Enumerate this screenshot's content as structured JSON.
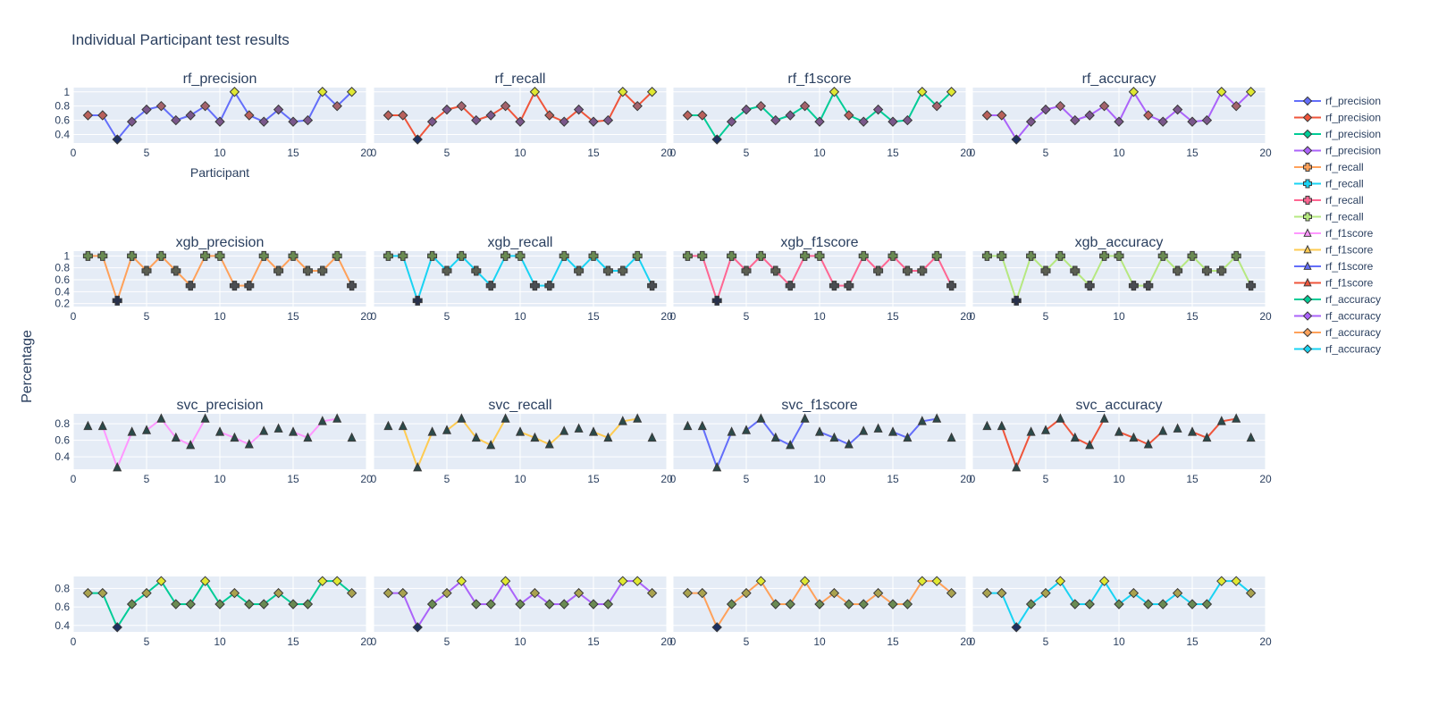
{
  "title": "Individual Participant test results",
  "ylabel": "Percentage",
  "xlabel": "Participant",
  "colors": {
    "blue": "#636efa",
    "red": "#ef553b",
    "green": "#00cc96",
    "purple": "#ab63fa",
    "orange": "#ffa15a",
    "cyan": "#19d3f3",
    "pink": "#ff6692",
    "lime": "#b6e880",
    "magenta": "#ff97ff",
    "yellow": "#fecb52",
    "plot_bg": "#e5ecf6",
    "grid": "#ffffff",
    "marker_edge": "#3a3a3a"
  },
  "legend": [
    {
      "label": "rf_precision",
      "color": "#636efa",
      "symbol": "diamond"
    },
    {
      "label": "rf_precision",
      "color": "#ef553b",
      "symbol": "diamond"
    },
    {
      "label": "rf_precision",
      "color": "#00cc96",
      "symbol": "diamond"
    },
    {
      "label": "rf_precision",
      "color": "#ab63fa",
      "symbol": "diamond"
    },
    {
      "label": "rf_recall",
      "color": "#ffa15a",
      "symbol": "cross"
    },
    {
      "label": "rf_recall",
      "color": "#19d3f3",
      "symbol": "cross"
    },
    {
      "label": "rf_recall",
      "color": "#ff6692",
      "symbol": "cross"
    },
    {
      "label": "rf_recall",
      "color": "#b6e880",
      "symbol": "cross"
    },
    {
      "label": "rf_f1score",
      "color": "#ff97ff",
      "symbol": "triangle"
    },
    {
      "label": "rf_f1score",
      "color": "#fecb52",
      "symbol": "triangle"
    },
    {
      "label": "rf_f1score",
      "color": "#636efa",
      "symbol": "triangle"
    },
    {
      "label": "rf_f1score",
      "color": "#ef553b",
      "symbol": "triangle"
    },
    {
      "label": "rf_accuracy",
      "color": "#00cc96",
      "symbol": "diamond"
    },
    {
      "label": "rf_accuracy",
      "color": "#ab63fa",
      "symbol": "diamond"
    },
    {
      "label": "rf_accuracy",
      "color": "#ffa15a",
      "symbol": "diamond"
    },
    {
      "label": "rf_accuracy",
      "color": "#19d3f3",
      "symbol": "diamond"
    }
  ],
  "chart_data": {
    "type": "line",
    "x": [
      1,
      2,
      3,
      4,
      5,
      6,
      7,
      8,
      9,
      10,
      11,
      12,
      13,
      14,
      15,
      16,
      17,
      18,
      19
    ],
    "xlim": [
      0,
      20
    ],
    "xticks": [
      0,
      5,
      10,
      15,
      20
    ],
    "grid": true,
    "legend_position": "right",
    "rows": [
      {
        "ylim": [
          0.28,
          1.06
        ],
        "yticks": [
          0.4,
          0.6,
          0.8,
          1
        ],
        "symbol": "diamond",
        "show_xlabel": true,
        "values": [
          0.67,
          0.67,
          0.33,
          0.58,
          0.75,
          0.8,
          0.6,
          0.67,
          0.8,
          0.58,
          1,
          0.67,
          0.58,
          0.75,
          0.58,
          0.6,
          1,
          0.8,
          1
        ],
        "marker_colors": [
          "#b9605a",
          "#b9605a",
          "#1d3060",
          "#7a578a",
          "#7a578a",
          "#a4636c",
          "#7a578a",
          "#7a578a",
          "#a4636c",
          "#7a578a",
          "#e0e832",
          "#b9605a",
          "#7a578a",
          "#7a578a",
          "#7a578a",
          "#7a578a",
          "#e0e832",
          "#a4636c",
          "#e0e832"
        ],
        "panels": [
          {
            "title": "rf_precision",
            "color": "#636efa"
          },
          {
            "title": "rf_recall",
            "color": "#ef553b"
          },
          {
            "title": "rf_f1score",
            "color": "#00cc96"
          },
          {
            "title": "rf_accuracy",
            "color": "#ab63fa"
          }
        ]
      },
      {
        "ylim": [
          0.15,
          1.08
        ],
        "yticks": [
          0.2,
          0.4,
          0.6,
          0.8,
          1
        ],
        "symbol": "cross",
        "show_xlabel": false,
        "values": [
          1,
          1,
          0.25,
          1,
          0.75,
          1,
          0.75,
          0.5,
          1,
          1,
          0.5,
          0.5,
          1,
          0.75,
          1,
          0.75,
          0.75,
          1,
          0.5
        ],
        "marker_colors": [
          "#6a8a52",
          "#6a8a52",
          "#27304a",
          "#6a8a52",
          "#5b5f52",
          "#6a8a52",
          "#5b5f52",
          "#4a4d52",
          "#6a8a52",
          "#6a8a52",
          "#4a4d52",
          "#4a4d52",
          "#6a8a52",
          "#5b5f52",
          "#6a8a52",
          "#5b5f52",
          "#5b5f52",
          "#6a8a52",
          "#4a4d52"
        ],
        "panels": [
          {
            "title": "xgb_precision",
            "color": "#ffa15a"
          },
          {
            "title": "xgb_recall",
            "color": "#19d3f3"
          },
          {
            "title": "xgb_f1score",
            "color": "#ff6692"
          },
          {
            "title": "xgb_accuracy",
            "color": "#b6e880"
          }
        ]
      },
      {
        "ylim": [
          0.25,
          0.92
        ],
        "yticks": [
          0.4,
          0.6,
          0.8
        ],
        "symbol": "triangle",
        "show_xlabel": false,
        "values": [
          0.77,
          0.77,
          0.27,
          0.7,
          0.72,
          0.86,
          0.63,
          0.54,
          0.86,
          0.7,
          0.63,
          0.55,
          0.71,
          0.74,
          0.7,
          0.63,
          0.83,
          0.86,
          0.63
        ],
        "marker_colors": [
          "#2a4a4a",
          "#2a4a4a",
          "#2a4a4a",
          "#2a4a4a",
          "#2a4a4a",
          "#2a4a4a",
          "#2a4a4a",
          "#2a4a4a",
          "#2a4a4a",
          "#2a4a4a",
          "#2a4a4a",
          "#2a4a4a",
          "#2a4a4a",
          "#2a4a4a",
          "#2a4a4a",
          "#2a4a4a",
          "#2a4a4a",
          "#2a4a4a",
          "#2a4a4a"
        ],
        "gaps": [
          [
            1,
            2
          ],
          [
            4,
            5
          ],
          [
            9,
            10
          ],
          [
            13,
            14
          ],
          [
            14,
            15
          ],
          [
            18,
            19
          ]
        ],
        "panels": [
          {
            "title": "svc_precision",
            "color": "#ff97ff"
          },
          {
            "title": "svc_recall",
            "color": "#fecb52"
          },
          {
            "title": "svc_f1score",
            "color": "#636efa"
          },
          {
            "title": "svc_accuracy",
            "color": "#ef553b"
          }
        ]
      },
      {
        "ylim": [
          0.33,
          0.93
        ],
        "yticks": [
          0.4,
          0.6,
          0.8
        ],
        "symbol": "diamond",
        "show_xlabel": false,
        "values": [
          0.75,
          0.75,
          0.38,
          0.63,
          0.75,
          0.88,
          0.63,
          0.63,
          0.88,
          0.63,
          0.75,
          0.63,
          0.63,
          0.75,
          0.63,
          0.63,
          0.88,
          0.88,
          0.75
        ],
        "marker_colors": [
          "#a9a24e",
          "#a9a24e",
          "#1d3060",
          "#6a8a52",
          "#a9a24e",
          "#e0e832",
          "#6a8a52",
          "#6a8a52",
          "#e0e832",
          "#6a8a52",
          "#a9a24e",
          "#6a8a52",
          "#6a8a52",
          "#a9a24e",
          "#6a8a52",
          "#6a8a52",
          "#e0e832",
          "#e0e832",
          "#a9a24e"
        ],
        "panels": [
          {
            "title": "",
            "color": "#00cc96"
          },
          {
            "title": "",
            "color": "#ab63fa"
          },
          {
            "title": "",
            "color": "#ffa15a"
          },
          {
            "title": "",
            "color": "#19d3f3"
          }
        ]
      }
    ]
  }
}
